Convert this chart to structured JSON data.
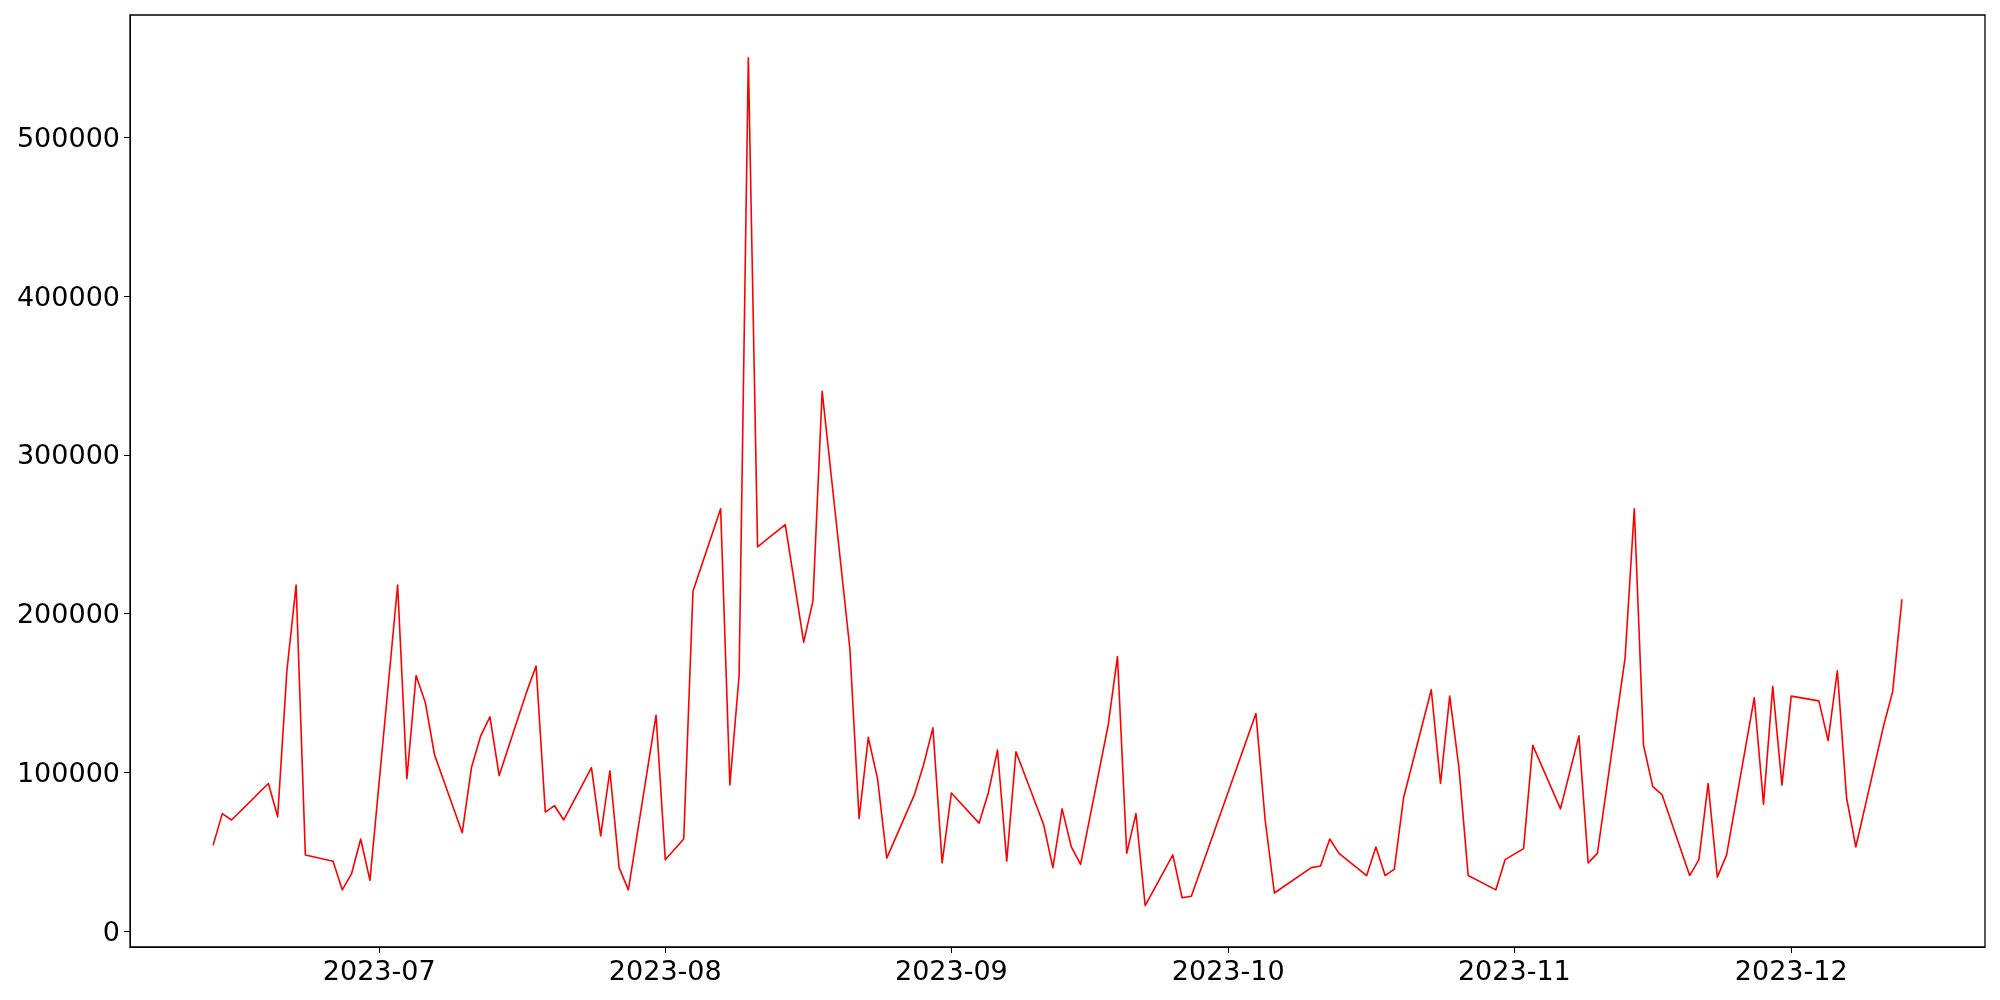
{
  "chart_data": {
    "type": "line",
    "x": [
      "2023-06-13",
      "2023-06-14",
      "2023-06-15",
      "2023-06-19",
      "2023-06-20",
      "2023-06-21",
      "2023-06-22",
      "2023-06-23",
      "2023-06-26",
      "2023-06-27",
      "2023-06-28",
      "2023-06-29",
      "2023-06-30",
      "2023-07-03",
      "2023-07-04",
      "2023-07-05",
      "2023-07-06",
      "2023-07-07",
      "2023-07-10",
      "2023-07-11",
      "2023-07-12",
      "2023-07-13",
      "2023-07-14",
      "2023-07-17",
      "2023-07-18",
      "2023-07-19",
      "2023-07-20",
      "2023-07-21",
      "2023-07-24",
      "2023-07-25",
      "2023-07-26",
      "2023-07-27",
      "2023-07-28",
      "2023-07-31",
      "2023-08-01",
      "2023-08-03",
      "2023-08-04",
      "2023-08-07",
      "2023-08-08",
      "2023-08-09",
      "2023-08-10",
      "2023-08-11",
      "2023-08-14",
      "2023-08-16",
      "2023-08-17",
      "2023-08-18",
      "2023-08-21",
      "2023-08-22",
      "2023-08-23",
      "2023-08-24",
      "2023-08-25",
      "2023-08-28",
      "2023-08-29",
      "2023-08-30",
      "2023-08-31",
      "2023-09-01",
      "2023-09-04",
      "2023-09-05",
      "2023-09-06",
      "2023-09-07",
      "2023-09-08",
      "2023-09-11",
      "2023-09-12",
      "2023-09-13",
      "2023-09-14",
      "2023-09-15",
      "2023-09-18",
      "2023-09-19",
      "2023-09-20",
      "2023-09-21",
      "2023-09-22",
      "2023-09-25",
      "2023-09-26",
      "2023-09-27",
      "2023-10-04",
      "2023-10-05",
      "2023-10-06",
      "2023-10-10",
      "2023-10-11",
      "2023-10-12",
      "2023-10-13",
      "2023-10-16",
      "2023-10-17",
      "2023-10-18",
      "2023-10-19",
      "2023-10-20",
      "2023-10-23",
      "2023-10-24",
      "2023-10-25",
      "2023-10-26",
      "2023-10-27",
      "2023-10-30",
      "2023-10-31",
      "2023-11-02",
      "2023-11-03",
      "2023-11-06",
      "2023-11-08",
      "2023-11-09",
      "2023-11-10",
      "2023-11-13",
      "2023-11-14",
      "2023-11-15",
      "2023-11-16",
      "2023-11-17",
      "2023-11-20",
      "2023-11-21",
      "2023-11-22",
      "2023-11-23",
      "2023-11-24",
      "2023-11-27",
      "2023-11-28",
      "2023-11-29",
      "2023-11-30",
      "2023-12-01",
      "2023-12-04",
      "2023-12-05",
      "2023-12-06",
      "2023-12-07",
      "2023-12-08",
      "2023-12-11",
      "2023-12-12",
      "2023-12-13"
    ],
    "series": [
      {
        "color": "#ff0000",
        "values": [
          54000,
          74000,
          70000,
          93000,
          72000,
          164000,
          218000,
          48000,
          44000,
          26000,
          36000,
          58000,
          32000,
          218000,
          96000,
          161000,
          144000,
          111000,
          62000,
          103000,
          123000,
          135000,
          98000,
          151000,
          167000,
          75000,
          79000,
          70000,
          103000,
          60000,
          101000,
          40000,
          26000,
          136000,
          45000,
          58000,
          214000,
          266000,
          92000,
          161000,
          550000,
          242000,
          256000,
          182000,
          208000,
          340000,
          178000,
          71000,
          122000,
          96000,
          46000,
          86000,
          105000,
          128000,
          43000,
          87000,
          68000,
          87000,
          114000,
          44000,
          113000,
          67000,
          40000,
          77000,
          53000,
          42000,
          130000,
          173000,
          49000,
          74000,
          16000,
          48000,
          21000,
          22000,
          137000,
          70000,
          24000,
          40000,
          41000,
          58000,
          49000,
          35000,
          53000,
          35000,
          39000,
          84000,
          152000,
          93000,
          148000,
          103000,
          35000,
          26000,
          45000,
          52000,
          117000,
          77000,
          123000,
          43000,
          49000,
          172000,
          266000,
          117000,
          91000,
          86000,
          35000,
          45000,
          93000,
          34000,
          48000,
          147000,
          80000,
          154000,
          92000,
          148000,
          145000,
          120000,
          164000,
          84000,
          53000,
          129000,
          151000,
          209000
        ]
      }
    ],
    "xlim": [
      "2023-06-04",
      "2023-12-22"
    ],
    "xticks": [
      {
        "value": "2023-07-01",
        "label": "2023-07"
      },
      {
        "value": "2023-08-01",
        "label": "2023-08"
      },
      {
        "value": "2023-09-01",
        "label": "2023-09"
      },
      {
        "value": "2023-10-01",
        "label": "2023-10"
      },
      {
        "value": "2023-11-01",
        "label": "2023-11"
      },
      {
        "value": "2023-12-01",
        "label": "2023-12"
      }
    ],
    "ylim": [
      -10000,
      577000
    ],
    "yticks": [
      0,
      100000,
      200000,
      300000,
      400000,
      500000
    ],
    "marker": "none",
    "line_style": "solid"
  }
}
